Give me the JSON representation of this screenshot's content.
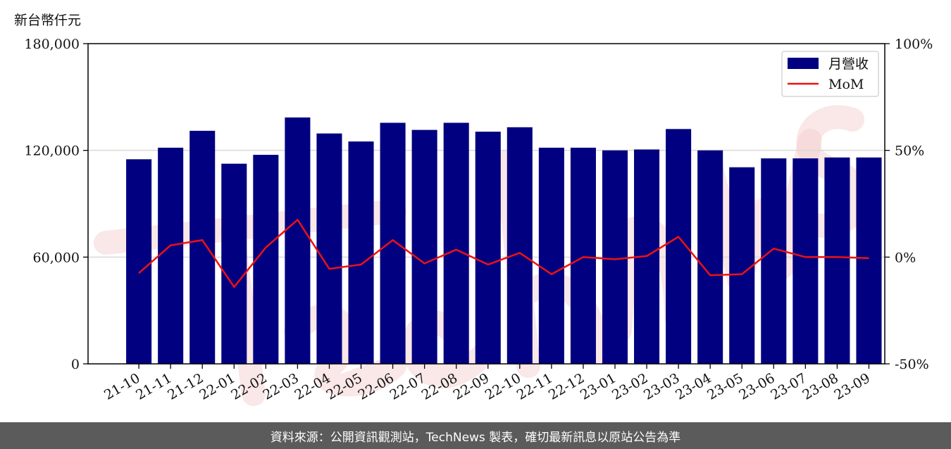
{
  "unit_label": "新台幣仟元",
  "footer_text": "資料來源：公開資訊觀測站，TechNews 製表，確切最新訊息以原站公告為準",
  "colors": {
    "bar": "#000080",
    "line": "#ee1111",
    "grid": "#d9d9d9",
    "watermark": "#f2c6c6"
  },
  "chart_data": {
    "type": "bar",
    "title": "",
    "xlabel": "",
    "ylabel": "新台幣仟元",
    "ylim": [
      0,
      180000
    ],
    "y2lim": [
      -50,
      100
    ],
    "yticks": [
      "0",
      "60,000",
      "120,000",
      "180,000"
    ],
    "y2ticks": [
      "-50%",
      "0%",
      "50%",
      "100%"
    ],
    "grid": "horizontal",
    "legend_position": "top-right",
    "categories": [
      "21-10",
      "21-11",
      "21-12",
      "22-01",
      "22-02",
      "22-03",
      "22-04",
      "22-05",
      "22-06",
      "22-07",
      "22-08",
      "22-09",
      "22-10",
      "22-11",
      "22-12",
      "23-01",
      "23-02",
      "23-03",
      "23-04",
      "23-05",
      "23-06",
      "23-07",
      "23-08",
      "23-09"
    ],
    "series": [
      {
        "name": "月營收",
        "axis": "left",
        "kind": "bar",
        "values": [
          115000,
          121500,
          131000,
          112500,
          117500,
          138500,
          129500,
          125000,
          135500,
          131500,
          135500,
          130500,
          133000,
          121500,
          121500,
          120000,
          120500,
          132000,
          120000,
          110500,
          115500,
          115500,
          116000,
          116000
        ]
      },
      {
        "name": "MoM",
        "axis": "right",
        "kind": "line",
        "values": [
          -7.5,
          5.5,
          8.0,
          -14.0,
          4.5,
          17.5,
          -5.5,
          -3.5,
          8.0,
          -3.0,
          3.5,
          -3.5,
          2.0,
          -8.0,
          0.0,
          -1.0,
          0.5,
          9.5,
          -8.5,
          -8.0,
          4.0,
          0.0,
          0.0,
          -0.5
        ]
      }
    ]
  }
}
